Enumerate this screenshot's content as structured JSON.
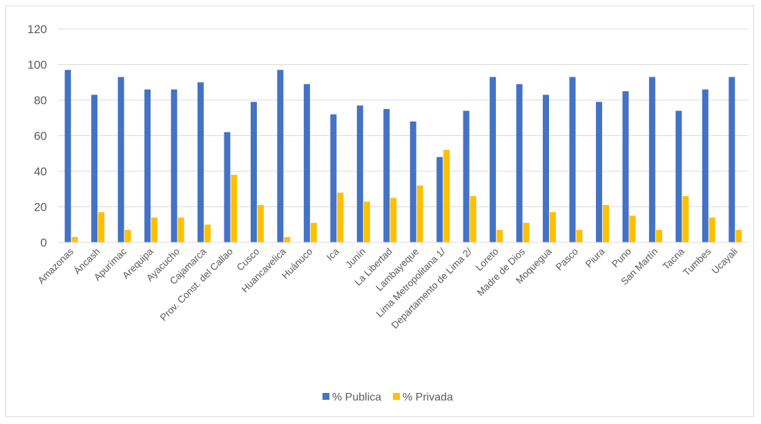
{
  "chart_data": {
    "type": "bar",
    "title": "",
    "xlabel": "",
    "ylabel": "",
    "ylim": [
      0,
      120
    ],
    "yticks": [
      0,
      20,
      40,
      60,
      80,
      100,
      120
    ],
    "grid": true,
    "legend": "bottom",
    "categories": [
      "Amazonas",
      "Áncash",
      "Apurímac",
      "Arequipa",
      "Ayacucho",
      "Cajamarca",
      "Prov. Const. del Callao",
      "Cusco",
      "Huancavelica",
      "Huánuco",
      "Ica",
      "Junín",
      "La Libertad",
      "Lambayeque",
      "Lima Metropolitana 1/",
      "Departamento de Lima 2/",
      "Loreto",
      "Madre de Dios",
      "Moquegua",
      "Pasco",
      "Piura",
      "Puno",
      "San Martín",
      "Tacna",
      "Tumbes",
      "Ucayali"
    ],
    "series": [
      {
        "name": "% Publica",
        "color": "#4472c4",
        "values": [
          97,
          83,
          93,
          86,
          86,
          90,
          62,
          79,
          97,
          89,
          72,
          77,
          75,
          68,
          48,
          74,
          93,
          89,
          83,
          93,
          79,
          85,
          93,
          74,
          86,
          93
        ]
      },
      {
        "name": "% Privada",
        "color": "#ffc000",
        "values": [
          3,
          17,
          7,
          14,
          14,
          10,
          38,
          21,
          3,
          11,
          28,
          23,
          25,
          32,
          52,
          26,
          7,
          11,
          17,
          7,
          21,
          15,
          7,
          26,
          14,
          7
        ]
      }
    ]
  }
}
